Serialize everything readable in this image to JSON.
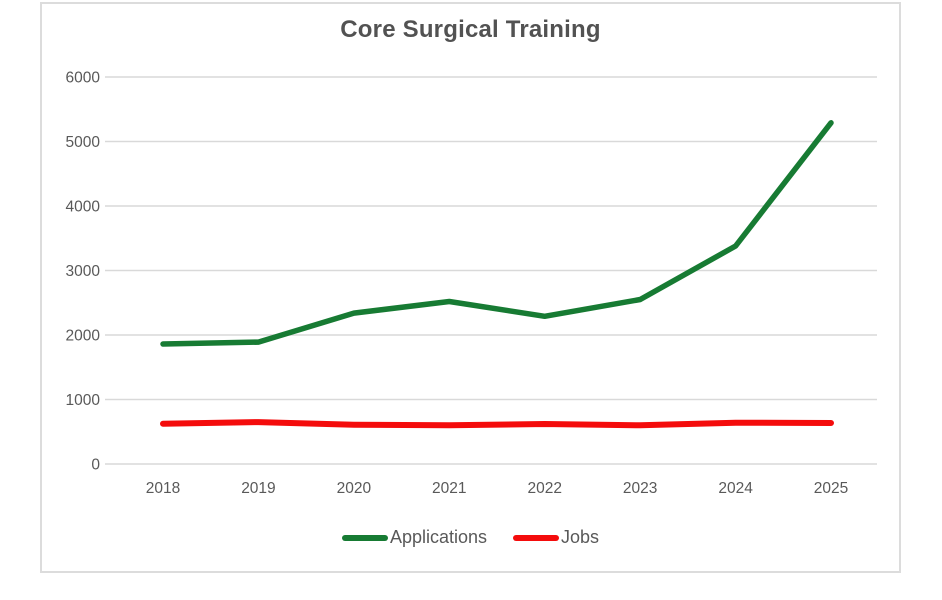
{
  "chart_data": {
    "type": "line",
    "title": "Core Surgical Training",
    "xlabel": "",
    "ylabel": "",
    "categories": [
      "2018",
      "2019",
      "2020",
      "2021",
      "2022",
      "2023",
      "2024",
      "2025"
    ],
    "series": [
      {
        "name": "Applications",
        "color": "#177b33",
        "values": [
          1860,
          1890,
          2340,
          2520,
          2290,
          2550,
          3380,
          5290
        ]
      },
      {
        "name": "Jobs",
        "color": "#f40c0c",
        "values": [
          625,
          650,
          610,
          600,
          620,
          600,
          640,
          635
        ]
      }
    ],
    "yticks": [
      0,
      1000,
      2000,
      3000,
      4000,
      5000,
      6000
    ],
    "ylim": [
      0,
      6000
    ],
    "grid": true,
    "legend_position": "bottom",
    "title_color": "#525252",
    "axis_text_color": "#595959",
    "gridline_color": "#d9d9d9",
    "frame_border_color": "#dcdcdc"
  }
}
